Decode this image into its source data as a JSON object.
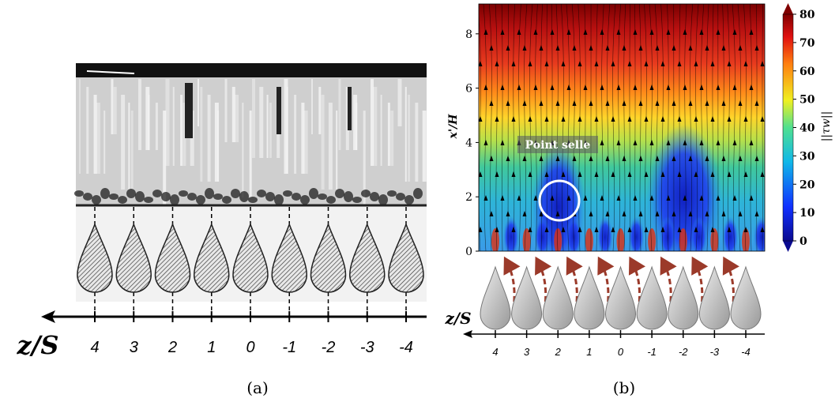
{
  "panel_a": {
    "axis_label": "z/S",
    "ticks": [
      4,
      3,
      2,
      1,
      0,
      -1,
      -2,
      -3,
      -4
    ],
    "xlim": [
      4,
      -4
    ],
    "caption": "(a)"
  },
  "panel_b": {
    "y_label": "x'/H",
    "yticks": [
      0,
      2,
      4,
      6,
      8
    ],
    "ylim": [
      0,
      9.1
    ],
    "annotation": "Point selle",
    "colorbar": {
      "label": "||τw||",
      "ticks": [
        0,
        10,
        20,
        30,
        40,
        50,
        60,
        70,
        80
      ],
      "lim": [
        0,
        80
      ]
    },
    "axis_label": "z/S",
    "ticks": [
      4,
      3,
      2,
      1,
      0,
      -1,
      -2,
      -3,
      -4
    ],
    "xlim": [
      4,
      -4
    ],
    "caption": "(b)"
  }
}
